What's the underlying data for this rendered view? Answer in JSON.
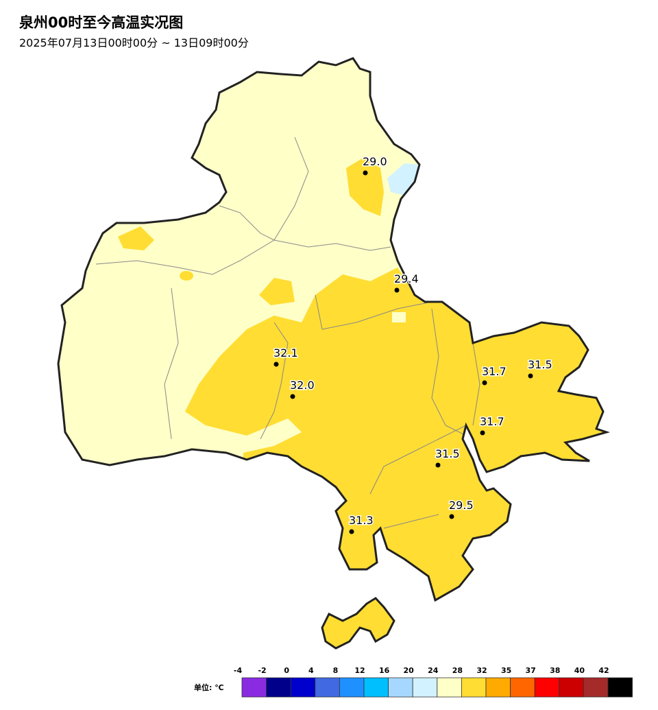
{
  "header": {
    "title": "泉州00时至今高温实况图",
    "subtitle": "2025年07月13日00时00分 ~ 13日09时00分"
  },
  "stations": [
    "29.0",
    "29.4",
    "32.1",
    "32.0",
    "31.7",
    "31.5",
    "31.7",
    "31.5",
    "29.5",
    "31.3"
  ],
  "legend": {
    "unit": "单位: ℃",
    "ticks": [
      "-4",
      "-2",
      "0",
      "4",
      "8",
      "12",
      "16",
      "20",
      "24",
      "28",
      "32",
      "35",
      "37",
      "38",
      "40",
      "42"
    ],
    "colors": [
      "#8a2be2",
      "#00008b",
      "#0000cd",
      "#4169e1",
      "#1e90ff",
      "#00bfff",
      "#a6d8ff",
      "#d2f2ff",
      "#ffffc8",
      "#ffdd33",
      "#ffaa00",
      "#ff6600",
      "#ff0000",
      "#cc0000",
      "#a52a2a",
      "#000000"
    ]
  }
}
